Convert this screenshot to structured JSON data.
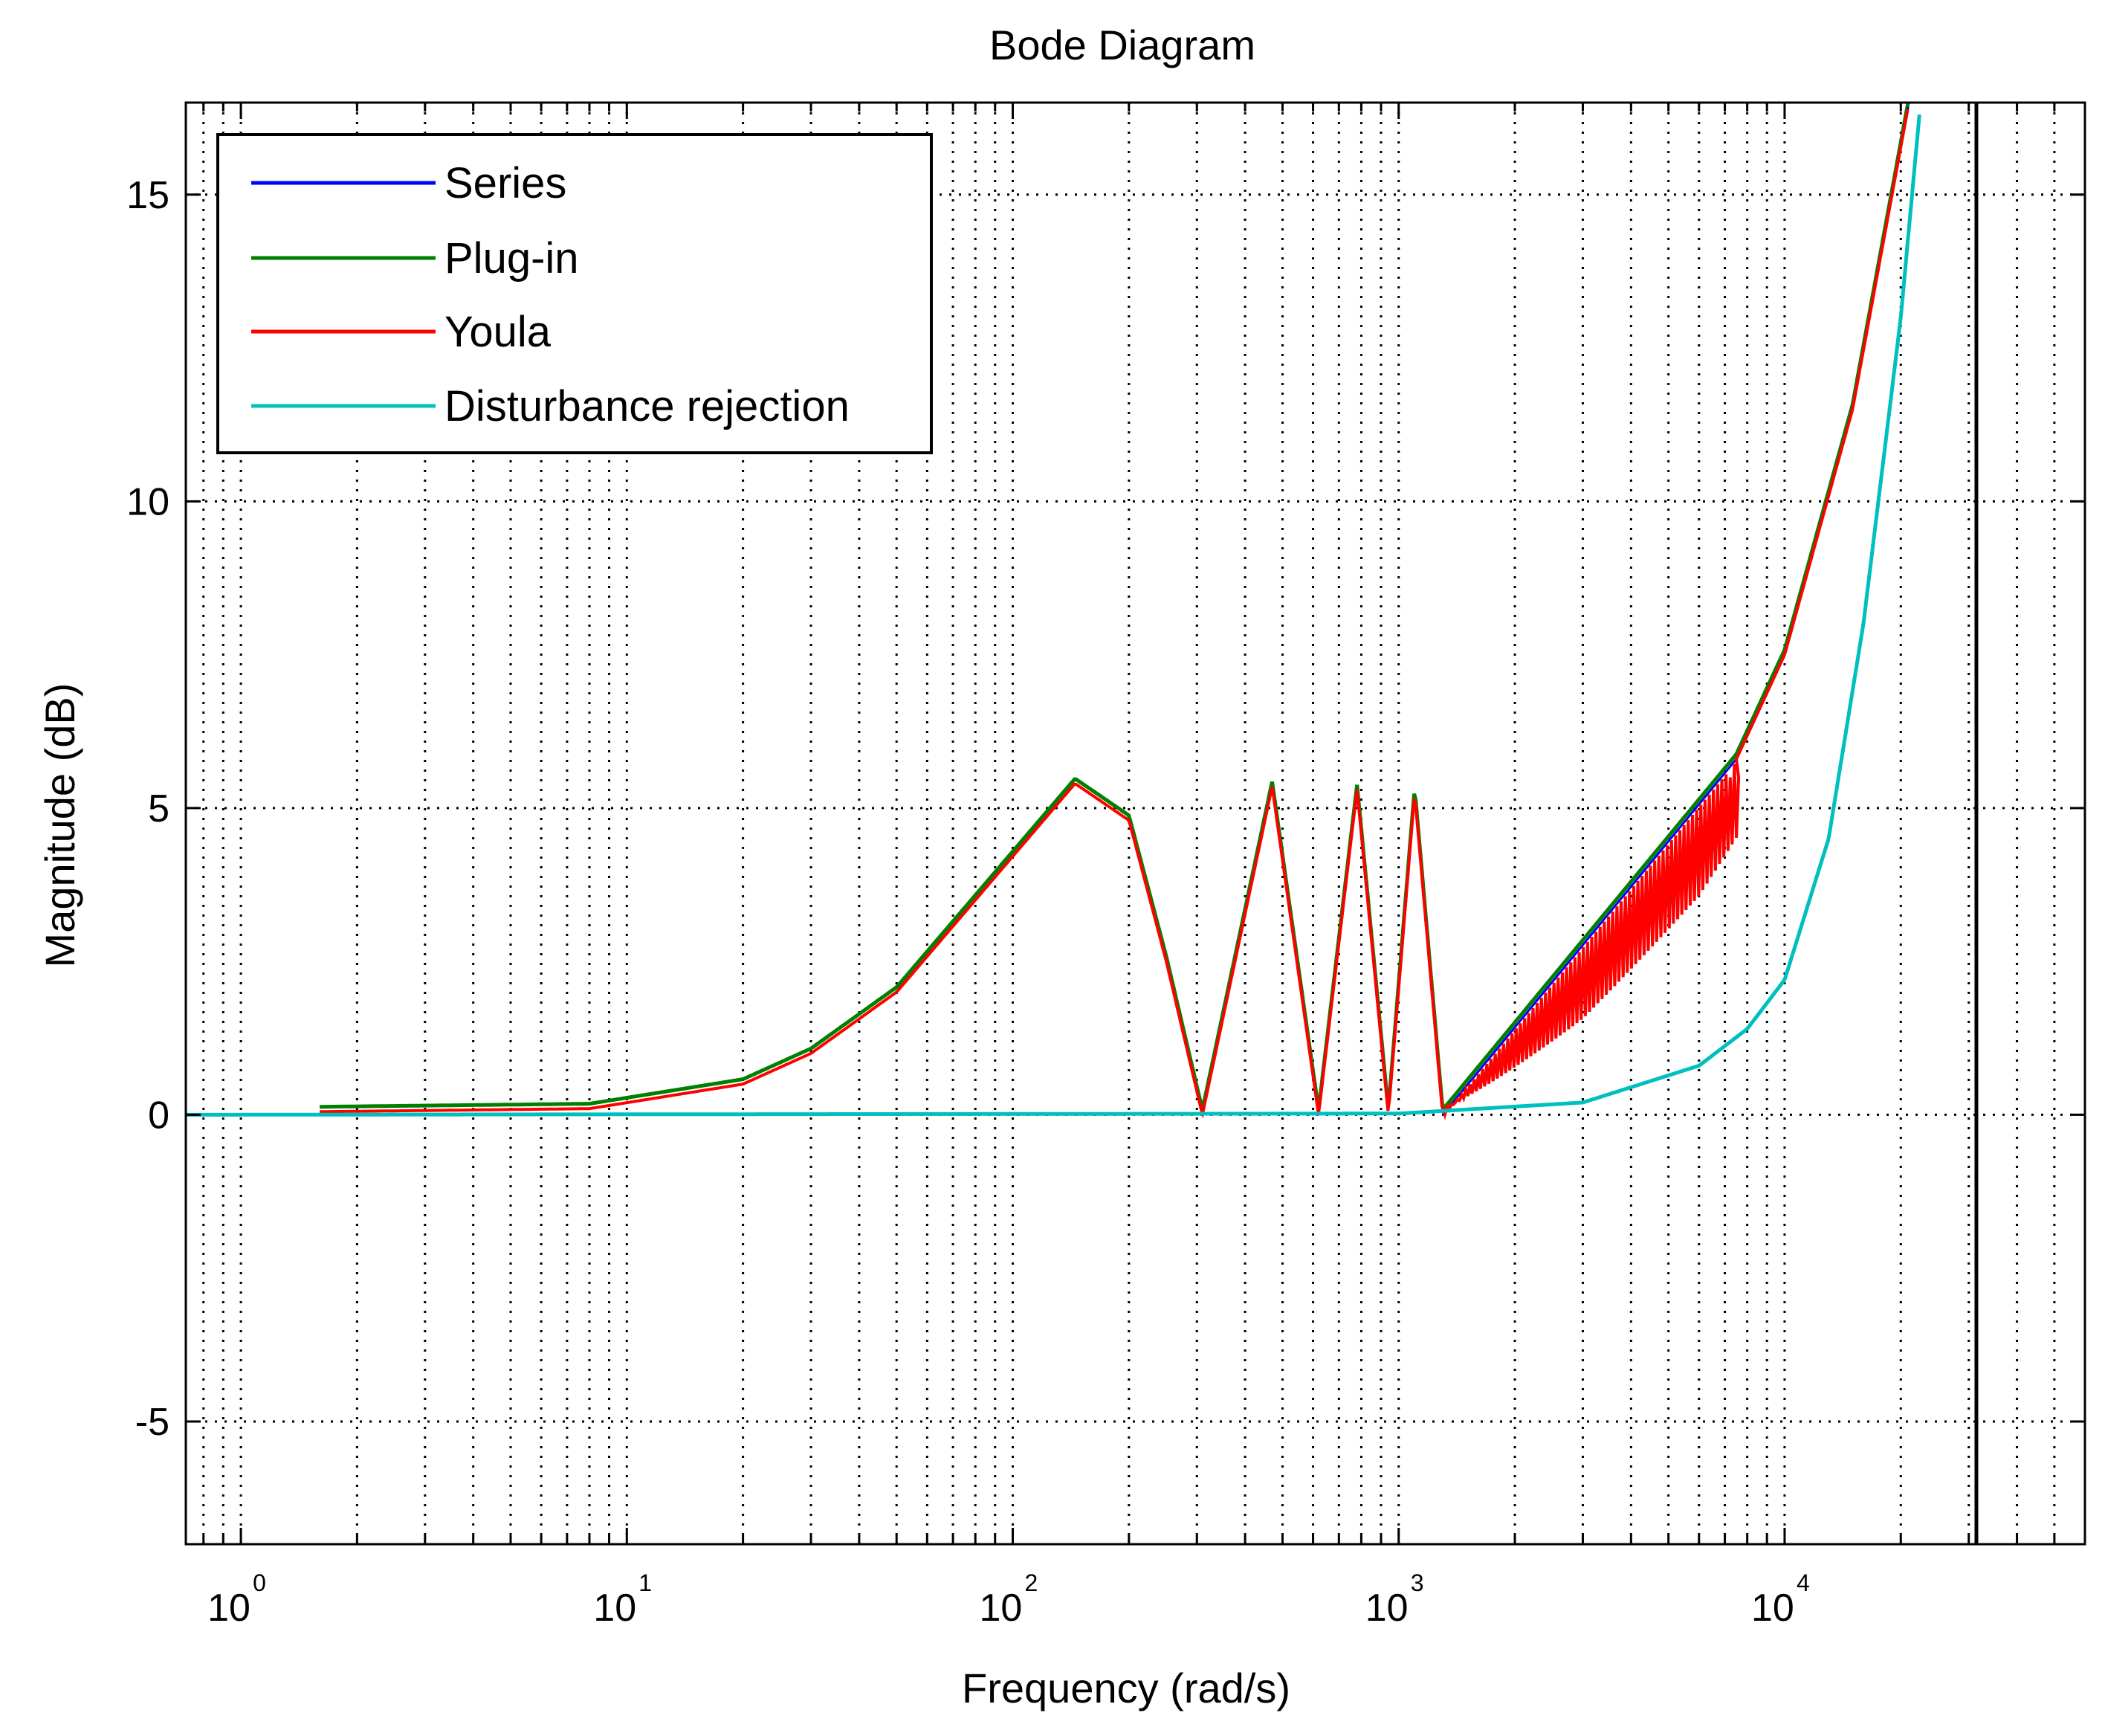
{
  "chart_data": {
    "type": "line",
    "title": "Bode Diagram",
    "xlabel": "Frequency  (rad/s)",
    "ylabel": "Magnitude (dB)",
    "xscale": "log",
    "xlim": [
      0.72,
      60000
    ],
    "ylim": [
      -7,
      16.5
    ],
    "grid": true,
    "legend_position": "top-left",
    "x_ticks": [
      {
        "base": "10",
        "exp": "0",
        "value": 1
      },
      {
        "base": "10",
        "exp": "1",
        "value": 10
      },
      {
        "base": "10",
        "exp": "2",
        "value": 100
      },
      {
        "base": "10",
        "exp": "3",
        "value": 1000
      },
      {
        "base": "10",
        "exp": "4",
        "value": 10000
      }
    ],
    "y_ticks": [
      {
        "label": "-5",
        "value": -5
      },
      {
        "label": "0",
        "value": 0
      },
      {
        "label": "5",
        "value": 5
      },
      {
        "label": "10",
        "value": 10
      },
      {
        "label": "15",
        "value": 15
      }
    ],
    "vertical_line_x": 31400,
    "series": [
      {
        "name": "Series",
        "color": "#0000ff"
      },
      {
        "name": "Plug-in",
        "color": "#008000"
      },
      {
        "name": "Youla",
        "color": "#ff0000"
      },
      {
        "name": "Disturbance rejection",
        "color": "#00bfbf"
      }
    ],
    "envelope_points": [
      {
        "x": 1.6,
        "y": 0.05
      },
      {
        "x": 8,
        "y": 0.1
      },
      {
        "x": 20,
        "y": 0.5
      },
      {
        "x": 30,
        "y": 1.0
      },
      {
        "x": 50,
        "y": 2.0
      },
      {
        "x": 80,
        "y": 3.5
      },
      {
        "x": 145,
        "y": 5.4
      },
      {
        "x": 200,
        "y": 4.8
      },
      {
        "x": 250,
        "y": 2.5
      },
      {
        "x": 310,
        "y": 0.0
      },
      {
        "x": 470,
        "y": 5.35
      },
      {
        "x": 620,
        "y": 0.0
      },
      {
        "x": 780,
        "y": 5.3
      },
      {
        "x": 940,
        "y": 0.0
      },
      {
        "x": 1100,
        "y": 5.25
      },
      {
        "x": 1300,
        "y": 0.0
      },
      {
        "x": 7500,
        "y": 5.8
      },
      {
        "x": 10000,
        "y": 7.5
      },
      {
        "x": 15000,
        "y": 11.5
      },
      {
        "x": 21000,
        "y": 16.5
      }
    ],
    "disturbance_points": [
      {
        "x": 0.72,
        "y": 0.0
      },
      {
        "x": 1000,
        "y": 0.02
      },
      {
        "x": 3000,
        "y": 0.2
      },
      {
        "x": 6000,
        "y": 0.8
      },
      {
        "x": 8000,
        "y": 1.4
      },
      {
        "x": 10000,
        "y": 2.2
      },
      {
        "x": 13000,
        "y": 4.5
      },
      {
        "x": 16000,
        "y": 8.0
      },
      {
        "x": 20000,
        "y": 13.0
      },
      {
        "x": 22500,
        "y": 16.5
      }
    ]
  }
}
